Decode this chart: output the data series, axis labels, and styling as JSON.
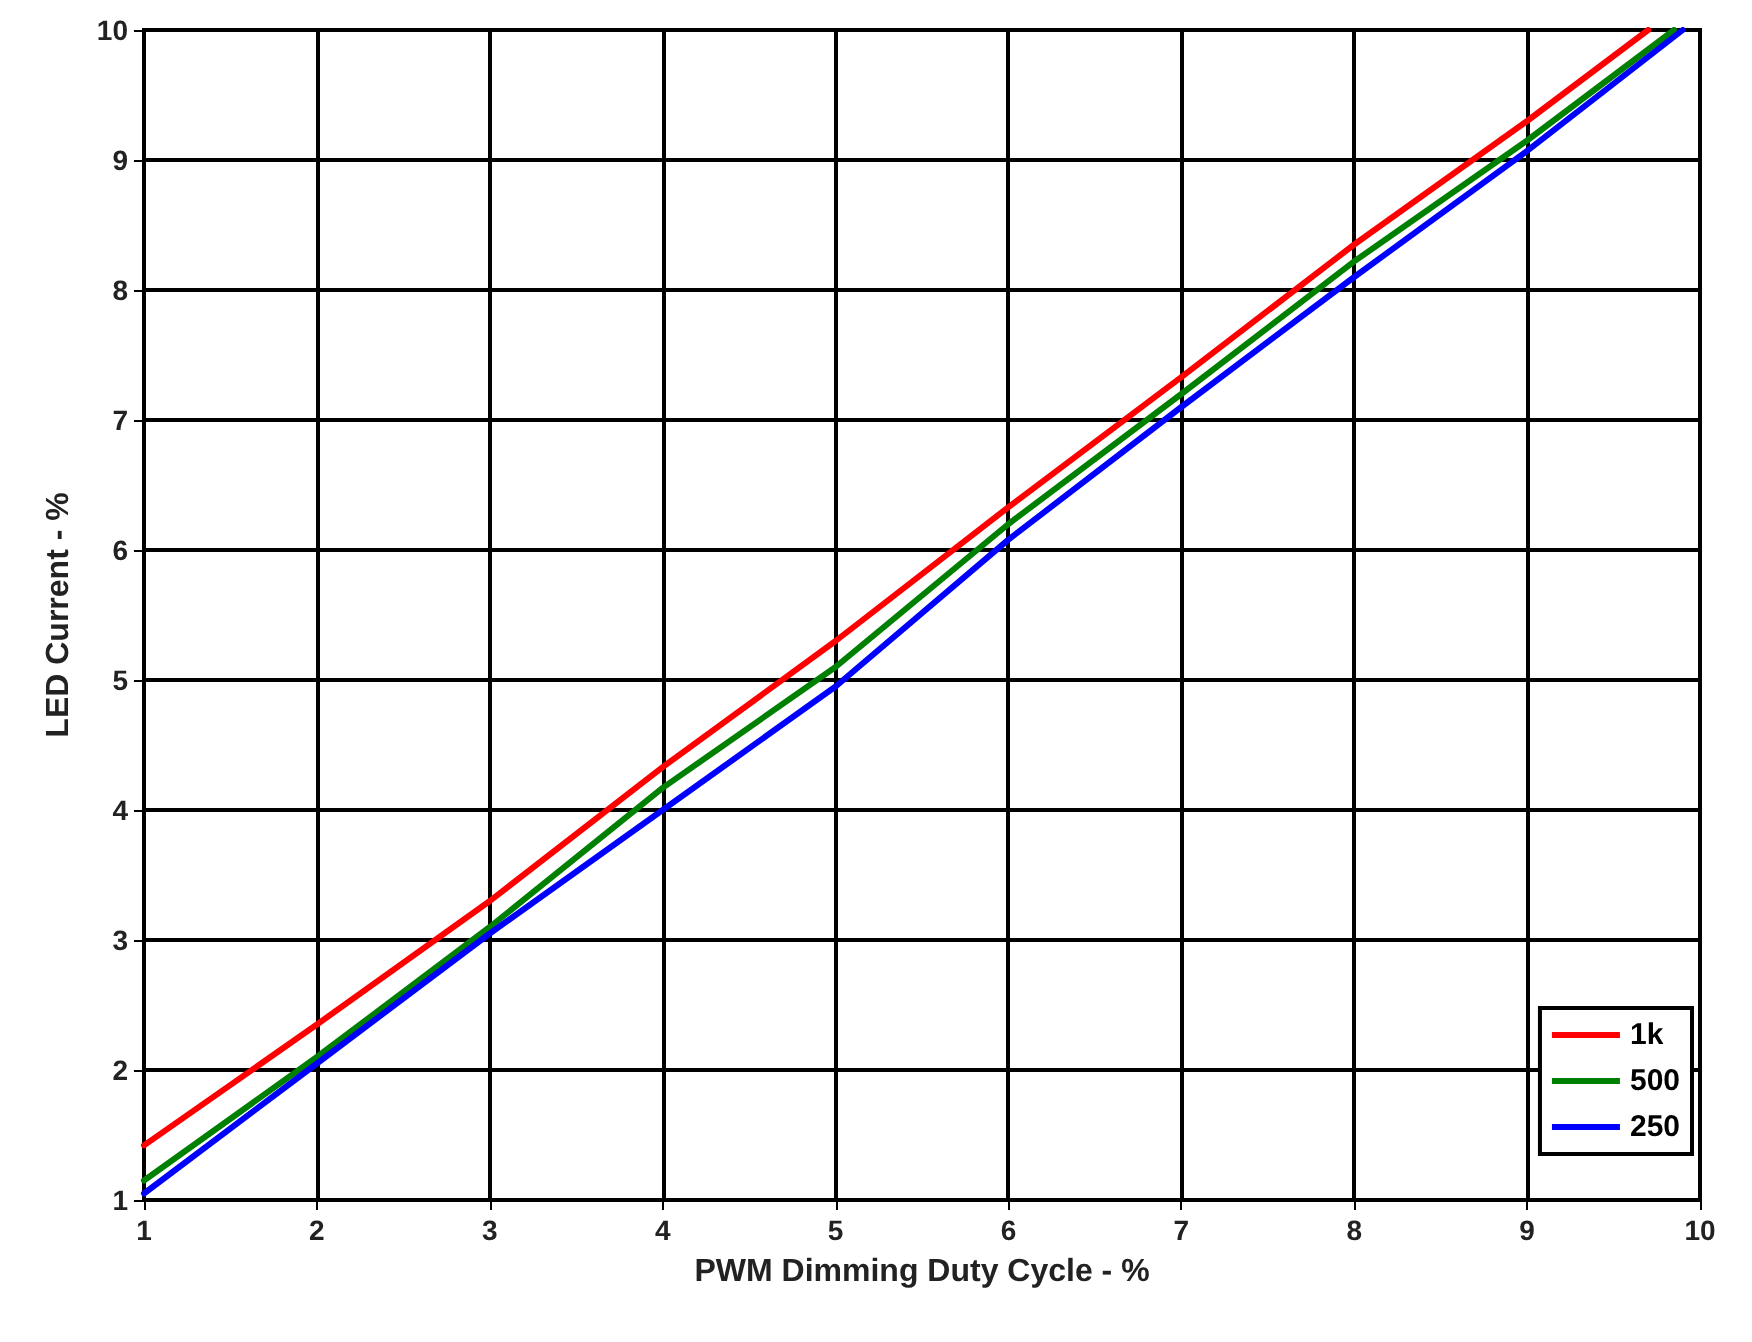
{
  "chart_data": {
    "type": "line",
    "xlabel": "PWM Dimming Duty Cycle - %",
    "ylabel": "LED Current - %",
    "xlim": [
      1,
      10
    ],
    "ylim": [
      1,
      10
    ],
    "xticks": [
      1,
      2,
      3,
      4,
      5,
      6,
      7,
      8,
      9,
      10
    ],
    "yticks": [
      1,
      2,
      3,
      4,
      5,
      6,
      7,
      8,
      9,
      10
    ],
    "grid": true,
    "legend": "bottom right",
    "marker": "none",
    "line_style": "solid",
    "series": [
      {
        "name": "1k",
        "color": "#ff0000",
        "x": [
          1,
          2,
          3,
          4,
          5,
          6,
          7,
          8,
          9,
          9.7
        ],
        "values": [
          1.42,
          2.35,
          3.3,
          4.33,
          5.3,
          6.33,
          7.33,
          8.35,
          9.3,
          10
        ]
      },
      {
        "name": "500",
        "color": "#008000",
        "x": [
          1,
          2,
          3,
          4,
          5,
          6,
          7,
          8,
          9,
          9.85
        ],
        "values": [
          1.15,
          2.1,
          3.1,
          4.17,
          5.1,
          6.2,
          7.2,
          8.22,
          9.15,
          10
        ]
      },
      {
        "name": "250",
        "color": "#0000ff",
        "x": [
          1,
          2,
          3,
          4,
          5,
          6,
          7,
          8,
          9,
          9.9
        ],
        "values": [
          1.05,
          2.05,
          3.05,
          4.0,
          4.95,
          6.08,
          7.1,
          8.1,
          9.07,
          10
        ]
      }
    ]
  }
}
